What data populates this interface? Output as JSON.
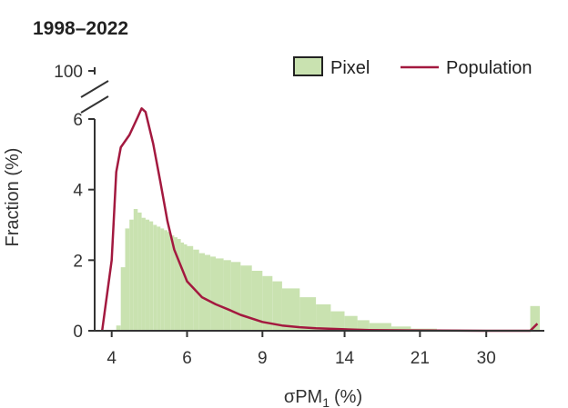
{
  "chart_data": {
    "type": "bar",
    "title": "1998–2022",
    "xlabel": "σPM",
    "xlabel_sub": "1",
    "xlabel_unit": "(%)",
    "ylabel": "Fraction (%)",
    "y_ticks": [
      "0",
      "2",
      "4",
      "6",
      "100"
    ],
    "y_tick_values": [
      0,
      2,
      4,
      6,
      100
    ],
    "y_axis_break": "between 6 and 100",
    "x_ticks": [
      "4",
      "6",
      "9",
      "14",
      "21",
      "30"
    ],
    "x_tick_values": [
      4,
      6,
      9,
      14,
      21,
      30
    ],
    "x_scale": "log",
    "ylim": [
      0,
      6.8
    ],
    "legend_position": "top-right",
    "series": [
      {
        "name": "Pixel",
        "kind": "histogram",
        "color": "#c9e2b0",
        "x": [
          4.0,
          4.1,
          4.2,
          4.3,
          4.4,
          4.5,
          4.6,
          4.7,
          4.8,
          4.9,
          5.0,
          5.1,
          5.2,
          5.3,
          5.4,
          5.5,
          5.6,
          5.7,
          5.8,
          5.9,
          6.0,
          6.2,
          6.4,
          6.6,
          6.8,
          7.0,
          7.3,
          7.6,
          8.0,
          8.5,
          9.0,
          9.5,
          10.0,
          11.0,
          12.0,
          13.0,
          14.0,
          15.0,
          16.0,
          18.0,
          20.0,
          23.0,
          26.0,
          30.0,
          35.0,
          38.0,
          40.0
        ],
        "values": [
          0.0,
          0.15,
          1.8,
          2.9,
          3.15,
          3.45,
          3.35,
          3.2,
          3.15,
          3.1,
          3.0,
          2.95,
          2.9,
          2.85,
          2.8,
          2.7,
          2.65,
          2.6,
          2.5,
          2.45,
          2.4,
          2.3,
          2.2,
          2.15,
          2.1,
          2.05,
          2.0,
          1.95,
          1.85,
          1.7,
          1.55,
          1.4,
          1.2,
          0.95,
          0.75,
          0.55,
          0.42,
          0.3,
          0.22,
          0.12,
          0.06,
          0.03,
          0.02,
          0.01,
          0.01,
          0.7,
          0.0
        ]
      },
      {
        "name": "Population",
        "kind": "line",
        "color": "#a3193f",
        "x": [
          3.8,
          4.0,
          4.1,
          4.2,
          4.4,
          4.6,
          4.7,
          4.8,
          5.0,
          5.2,
          5.4,
          5.6,
          6.0,
          6.5,
          7.0,
          7.5,
          8.0,
          9.0,
          10.0,
          11.0,
          12.0,
          14.0,
          16.0,
          20.0,
          30.0,
          38.0,
          39.5
        ],
        "values": [
          0.0,
          2.0,
          4.5,
          5.2,
          5.55,
          6.05,
          6.3,
          6.2,
          5.3,
          4.2,
          3.1,
          2.3,
          1.4,
          0.95,
          0.75,
          0.6,
          0.45,
          0.25,
          0.15,
          0.1,
          0.07,
          0.04,
          0.02,
          0.01,
          0.0,
          0.0,
          0.2
        ]
      }
    ]
  }
}
